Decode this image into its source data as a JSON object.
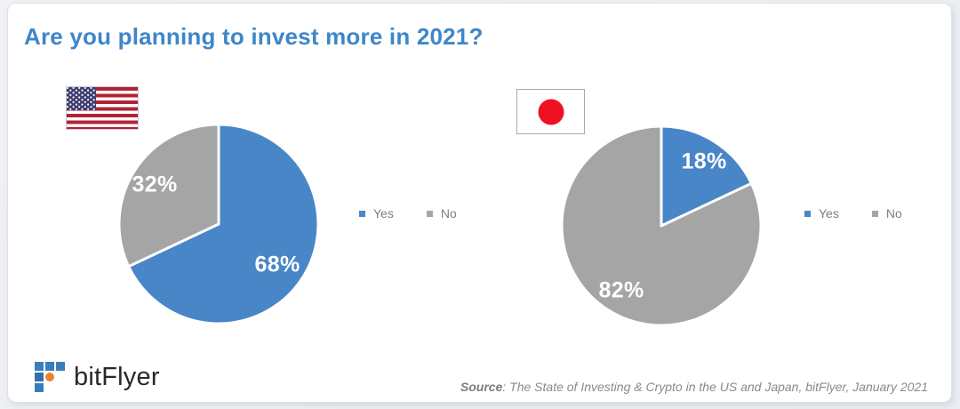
{
  "title": "Are you planning to invest more in 2021?",
  "chart_data": [
    {
      "type": "pie",
      "flag_icon": "us-flag-icon",
      "categories": [
        "Yes",
        "No"
      ],
      "values": [
        68,
        32
      ],
      "data_labels": [
        "68%",
        "32%"
      ],
      "colors": [
        "#4886c7",
        "#a5a5a5"
      ],
      "start_angle_deg": 0,
      "direction": "clockwise",
      "legend_position": "right",
      "slice_border_color": "#ffffff"
    },
    {
      "type": "pie",
      "flag_icon": "japan-flag-icon",
      "categories": [
        "Yes",
        "No"
      ],
      "values": [
        18,
        82
      ],
      "data_labels": [
        "18%",
        "82%"
      ],
      "colors": [
        "#4886c7",
        "#a5a5a5"
      ],
      "start_angle_deg": 0,
      "direction": "clockwise",
      "legend_position": "right",
      "slice_border_color": "#ffffff"
    }
  ],
  "footer": {
    "logo_text": "bitFlyer",
    "source_label": "Source",
    "source_rest": ": The State of Investing & Crypto in the US and Japan, bitFlyer, January 2021"
  },
  "colors": {
    "title_blue": "#3e86c8",
    "pie_yes_blue": "#4886c7",
    "pie_no_gray": "#a5a5a5",
    "legend_text_gray": "#7f7f7f",
    "source_gray": "#8a8a8a",
    "logo_blue": "#3a7dbd",
    "logo_orange": "#ef8030"
  }
}
